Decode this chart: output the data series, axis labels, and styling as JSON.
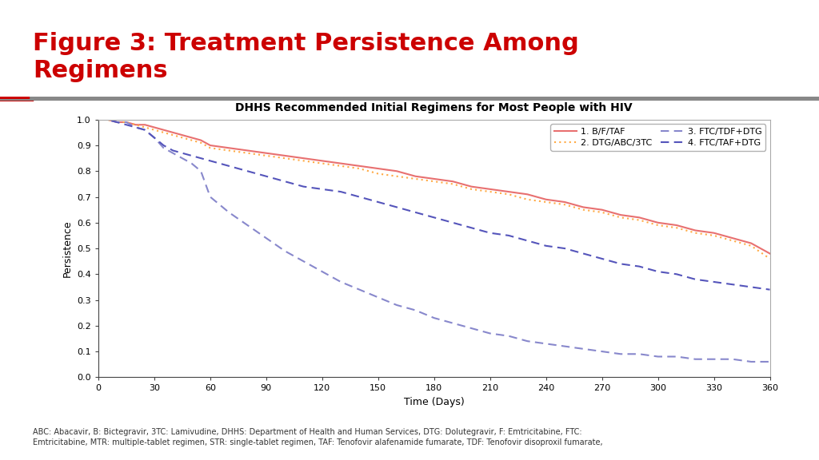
{
  "title_main": "Figure 3: Treatment Persistence Among\nRegimens",
  "title_main_color": "#cc0000",
  "chart_title": "DHHS Recommended Initial Regimens for Most People with HIV",
  "xlabel": "Time (Days)",
  "ylabel": "Persistence",
  "background_color": "#ffffff",
  "series": [
    {
      "label": "1. B/F/TAF",
      "color": "#e87070",
      "linestyle": "solid",
      "linewidth": 1.5,
      "x": [
        0,
        5,
        10,
        15,
        20,
        25,
        30,
        35,
        40,
        45,
        50,
        55,
        60,
        70,
        80,
        90,
        100,
        110,
        120,
        130,
        140,
        150,
        160,
        170,
        180,
        190,
        200,
        210,
        220,
        230,
        240,
        250,
        260,
        270,
        280,
        290,
        300,
        310,
        320,
        330,
        340,
        350,
        360
      ],
      "y": [
        1.0,
        1.0,
        0.99,
        0.99,
        0.98,
        0.98,
        0.97,
        0.96,
        0.95,
        0.94,
        0.93,
        0.92,
        0.9,
        0.89,
        0.88,
        0.87,
        0.86,
        0.85,
        0.84,
        0.83,
        0.82,
        0.81,
        0.8,
        0.78,
        0.77,
        0.76,
        0.74,
        0.73,
        0.72,
        0.71,
        0.69,
        0.68,
        0.66,
        0.65,
        0.63,
        0.62,
        0.6,
        0.59,
        0.57,
        0.56,
        0.54,
        0.52,
        0.48
      ]
    },
    {
      "label": "2. DTG/ABC/3TC",
      "color": "#ffaa44",
      "linestyle": "dotted",
      "linewidth": 1.5,
      "x": [
        0,
        5,
        10,
        15,
        20,
        25,
        30,
        35,
        40,
        45,
        50,
        55,
        60,
        70,
        80,
        90,
        100,
        110,
        120,
        130,
        140,
        150,
        160,
        170,
        180,
        190,
        200,
        210,
        220,
        230,
        240,
        250,
        260,
        270,
        280,
        290,
        300,
        310,
        320,
        330,
        340,
        350,
        360
      ],
      "y": [
        1.0,
        1.0,
        0.99,
        0.99,
        0.98,
        0.97,
        0.96,
        0.95,
        0.94,
        0.93,
        0.92,
        0.91,
        0.89,
        0.88,
        0.87,
        0.86,
        0.85,
        0.84,
        0.83,
        0.82,
        0.81,
        0.79,
        0.78,
        0.77,
        0.76,
        0.75,
        0.73,
        0.72,
        0.71,
        0.69,
        0.68,
        0.67,
        0.65,
        0.64,
        0.62,
        0.61,
        0.59,
        0.58,
        0.56,
        0.55,
        0.53,
        0.51,
        0.46
      ]
    },
    {
      "label": "3. FTC/TDF+DTG",
      "color": "#8888cc",
      "linestyle": "dashed",
      "linewidth": 1.5,
      "x": [
        0,
        5,
        10,
        15,
        20,
        25,
        30,
        35,
        40,
        45,
        50,
        55,
        60,
        70,
        80,
        90,
        100,
        110,
        120,
        130,
        140,
        150,
        160,
        170,
        180,
        190,
        200,
        210,
        220,
        230,
        240,
        250,
        260,
        270,
        280,
        290,
        300,
        310,
        320,
        330,
        340,
        350,
        360
      ],
      "y": [
        1.0,
        1.0,
        0.99,
        0.99,
        0.97,
        0.96,
        0.93,
        0.89,
        0.87,
        0.85,
        0.83,
        0.8,
        0.7,
        0.64,
        0.59,
        0.54,
        0.49,
        0.45,
        0.41,
        0.37,
        0.34,
        0.31,
        0.28,
        0.26,
        0.23,
        0.21,
        0.19,
        0.17,
        0.16,
        0.14,
        0.13,
        0.12,
        0.11,
        0.1,
        0.09,
        0.09,
        0.08,
        0.08,
        0.07,
        0.07,
        0.07,
        0.06,
        0.06
      ]
    },
    {
      "label": "4. FTC/TAF+DTG",
      "color": "#5555bb",
      "linestyle": "dashed",
      "linewidth": 1.5,
      "x": [
        0,
        5,
        10,
        15,
        20,
        25,
        30,
        35,
        40,
        45,
        50,
        55,
        60,
        70,
        80,
        90,
        100,
        110,
        120,
        130,
        140,
        150,
        160,
        170,
        180,
        190,
        200,
        210,
        220,
        230,
        240,
        250,
        260,
        270,
        280,
        290,
        300,
        310,
        320,
        330,
        340,
        350,
        360
      ],
      "y": [
        1.0,
        1.0,
        0.99,
        0.98,
        0.97,
        0.96,
        0.93,
        0.9,
        0.88,
        0.87,
        0.86,
        0.85,
        0.84,
        0.82,
        0.8,
        0.78,
        0.76,
        0.74,
        0.73,
        0.72,
        0.7,
        0.68,
        0.66,
        0.64,
        0.62,
        0.6,
        0.58,
        0.56,
        0.55,
        0.53,
        0.51,
        0.5,
        0.48,
        0.46,
        0.44,
        0.43,
        0.41,
        0.4,
        0.38,
        0.37,
        0.36,
        0.35,
        0.34
      ]
    }
  ],
  "xlim": [
    0,
    360
  ],
  "ylim": [
    0.0,
    1.0
  ],
  "xticks": [
    0,
    30,
    60,
    90,
    120,
    150,
    180,
    210,
    240,
    270,
    300,
    330,
    360
  ],
  "yticks": [
    0.0,
    0.1,
    0.2,
    0.3,
    0.4,
    0.5,
    0.6,
    0.7,
    0.8,
    0.9,
    1.0
  ],
  "footnote": "ABC: Abacavir, B: Bictegravir, 3TC: Lamivudine, DHHS: Department of Health and Human Services, DTG: Dolutegravir, F: Emtricitabine, FTC:\nEmtricitabine, MTR: multiple-tablet regimen, STR: single-tablet regimen, TAF: Tenofovir alafenamide fumarate, TDF: Tenofovir disoproxil fumarate,"
}
